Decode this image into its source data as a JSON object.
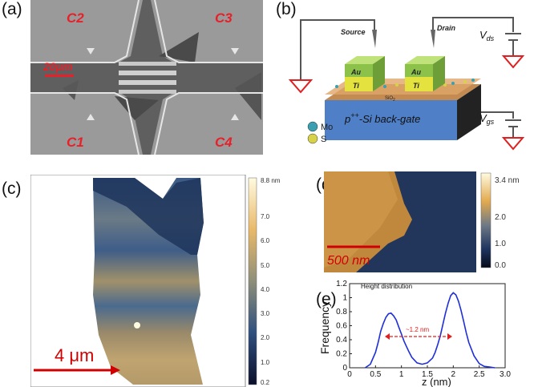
{
  "panels": {
    "a": {
      "label": "(a)",
      "contacts": [
        "C2",
        "C3",
        "C1",
        "C4"
      ],
      "scalebar": "20μm"
    },
    "b": {
      "label": "(b)",
      "source": "Source",
      "drain": "Drain",
      "vds": "V",
      "vds_sub": "ds",
      "vgs": "V",
      "vgs_sub": "gs",
      "au": "Au",
      "ti": "Ti",
      "sio2": "SiO",
      "sio2_sub": "2",
      "backgate_pre": "p",
      "backgate_sup": "++",
      "backgate_post": "-Si back-gate",
      "legend": [
        {
          "name": "Mo",
          "color": "#3a9fb0"
        },
        {
          "name": "S",
          "color": "#d8d24a"
        }
      ]
    },
    "c": {
      "label": "(c)",
      "scalebar": "4 μm",
      "colorbar_ticks": [
        "8.8 nm",
        "7.0",
        "6.0",
        "5.0",
        "4.0",
        "3.0",
        "2.0",
        "1.0",
        "0.2"
      ]
    },
    "d": {
      "label": "(d)",
      "scalebar": "500 nm",
      "colorbar_ticks": [
        "3.4 nm",
        "2.0",
        "1.0",
        "0.0"
      ]
    },
    "e": {
      "label": "(e)"
    }
  },
  "chart_data": {
    "type": "line",
    "title": "Height distribution",
    "xlabel": "z (nm)",
    "ylabel": "Frequency",
    "xlim": [
      0,
      3.0
    ],
    "ylim": [
      0,
      1.2
    ],
    "xticks": [
      "0",
      "0.5",
      "1",
      "1.5",
      "2",
      "2.5",
      "3.0"
    ],
    "yticks": [
      "0",
      "0.2",
      "0.4",
      "0.6",
      "0.8",
      "1",
      "1.2"
    ],
    "annotation": "~1.2 nm",
    "series": [
      {
        "color": "#1f2fd8",
        "x": [
          0.3,
          0.4,
          0.5,
          0.55,
          0.6,
          0.65,
          0.7,
          0.75,
          0.8,
          0.85,
          0.9,
          0.95,
          1.0,
          1.05,
          1.1,
          1.15,
          1.2,
          1.3,
          1.4,
          1.5,
          1.6,
          1.65,
          1.7,
          1.75,
          1.8,
          1.85,
          1.9,
          1.95,
          2.0,
          2.05,
          2.1,
          2.15,
          2.2,
          2.25,
          2.3,
          2.4,
          2.5,
          2.6,
          2.7,
          2.8
        ],
        "y": [
          0.0,
          0.05,
          0.22,
          0.36,
          0.52,
          0.63,
          0.72,
          0.77,
          0.78,
          0.74,
          0.68,
          0.58,
          0.48,
          0.38,
          0.3,
          0.22,
          0.15,
          0.07,
          0.05,
          0.07,
          0.14,
          0.22,
          0.33,
          0.46,
          0.62,
          0.78,
          0.92,
          1.03,
          1.07,
          1.04,
          0.95,
          0.82,
          0.66,
          0.5,
          0.36,
          0.17,
          0.06,
          0.02,
          0.01,
          0.0
        ]
      }
    ]
  }
}
